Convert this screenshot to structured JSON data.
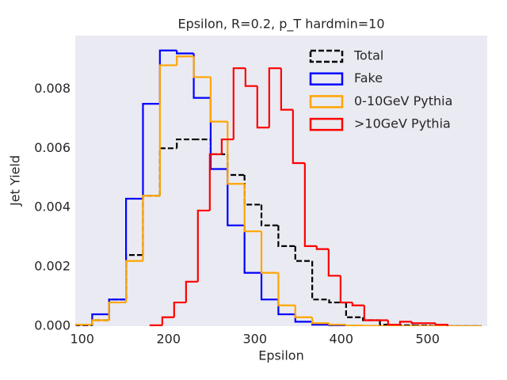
{
  "chart_data": {
    "type": "histogram",
    "title": "Epsilon, R=0.2, p_T hardmin=10",
    "xlabel": "Epsilon",
    "ylabel": "Jet Yield",
    "xlim": [
      92,
      569
    ],
    "ylim": [
      0,
      0.0098
    ],
    "xticks": [
      100,
      200,
      300,
      400,
      500
    ],
    "yticks": [
      {
        "value": 0,
        "label": "0.000"
      },
      {
        "value": 0.002,
        "label": "0.002"
      },
      {
        "value": 0.004,
        "label": "0.004"
      },
      {
        "value": 0.006,
        "label": "0.006"
      },
      {
        "value": 0.008,
        "label": "0.008"
      }
    ],
    "grid": false,
    "legend": "upper right",
    "series": [
      {
        "name": "Total",
        "color": "#000000",
        "dashed": true,
        "bins": [
          92,
          111.6,
          131.2,
          150.8,
          170.4,
          190,
          209.6,
          229.2,
          248.8,
          268.4,
          288,
          307.6,
          327.2,
          346.8,
          366.4,
          386,
          405.6,
          425.2,
          444.8,
          464.4,
          484,
          503.6,
          523.2,
          542.8,
          562.4
        ],
        "values": [
          2e-05,
          0.0002,
          0.0009,
          0.0024,
          0.0044,
          0.006,
          0.0063,
          0.0063,
          0.0058,
          0.0051,
          0.0041,
          0.0034,
          0.0027,
          0.0022,
          0.0009,
          0.0008,
          0.0003,
          0.0002,
          5e-05,
          3e-05,
          2e-05,
          1e-05,
          0,
          0
        ]
      },
      {
        "name": "Fake",
        "color": "#0000ff",
        "dashed": false,
        "bins": [
          92,
          111.6,
          131.2,
          150.8,
          170.4,
          190,
          209.6,
          229.2,
          248.8,
          268.4,
          288,
          307.6,
          327.2,
          346.8,
          366.4,
          386,
          405.6,
          425.2,
          444.8,
          464.4,
          484,
          503.6,
          523.2,
          542.8,
          562.4
        ],
        "values": [
          5e-05,
          0.0004,
          0.0009,
          0.0043,
          0.0075,
          0.0093,
          0.0092,
          0.0077,
          0.0053,
          0.0034,
          0.0018,
          0.0009,
          0.0004,
          0.00015,
          5e-05,
          2e-05,
          1e-05,
          0,
          0,
          0,
          0,
          0,
          0,
          0
        ]
      },
      {
        "name": "0-10GeV Pythia",
        "color": "#ffa500",
        "dashed": false,
        "bins": [
          92,
          111.6,
          131.2,
          150.8,
          170.4,
          190,
          209.6,
          229.2,
          248.8,
          268.4,
          288,
          307.6,
          327.2,
          346.8,
          366.4,
          386,
          405.6,
          425.2,
          444.8,
          464.4,
          484,
          503.6,
          523.2,
          542.8,
          562.4
        ],
        "values": [
          5e-05,
          0.0002,
          0.0008,
          0.0022,
          0.0044,
          0.0088,
          0.0091,
          0.0084,
          0.0069,
          0.0048,
          0.0032,
          0.0018,
          0.0007,
          0.0003,
          0.0001,
          5e-05,
          2e-05,
          1e-05,
          0,
          0,
          0,
          0,
          0,
          0
        ]
      },
      {
        "name": ">10GeV Pythia",
        "color": "#ff0000",
        "dashed": false,
        "bins": [
          179,
          192.8,
          206.5,
          220.3,
          234,
          247.8,
          261.6,
          275.3,
          289.1,
          302.8,
          316.6,
          330.4,
          344.1,
          357.9,
          371.6,
          385.4,
          399.2,
          412.9,
          426.7,
          440.4,
          454.2,
          468,
          481.7,
          495.5,
          509.2,
          523
        ],
        "values": [
          3e-05,
          0.0003,
          0.0008,
          0.0015,
          0.0039,
          0.0058,
          0.0063,
          0.0087,
          0.0081,
          0.0067,
          0.0087,
          0.0073,
          0.0055,
          0.0027,
          0.0026,
          0.0017,
          0.0008,
          0.0007,
          0.0002,
          0.0002,
          5e-05,
          0.00015,
          0.0001,
          0.0001,
          5e-05
        ]
      }
    ]
  }
}
